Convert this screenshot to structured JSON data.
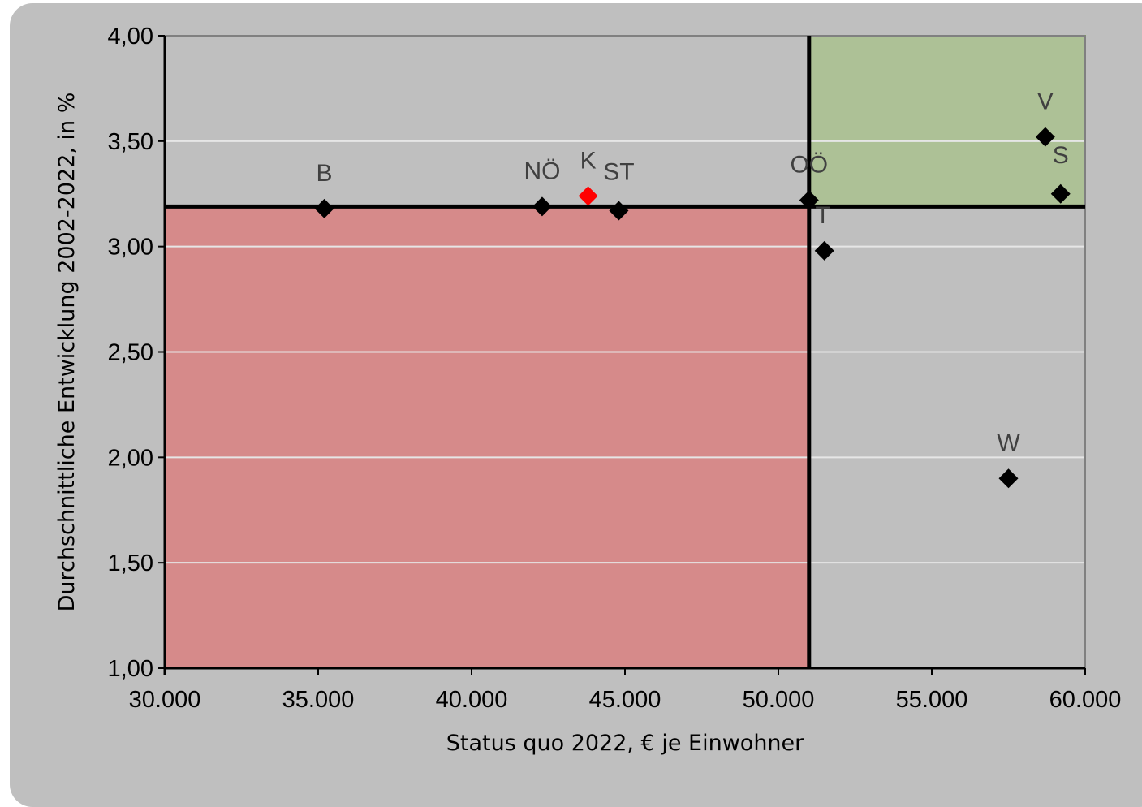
{
  "chart_data": {
    "type": "scatter",
    "title": "",
    "xlabel": "Status quo 2022, € je Einwohner",
    "ylabel": "Durchschnittliche Entwicklung 2002-2022, in %",
    "xlim": [
      30000,
      60000
    ],
    "ylim": [
      1.0,
      4.0
    ],
    "x_ticks": [
      {
        "value": 30000,
        "label": "30.000"
      },
      {
        "value": 35000,
        "label": "35.000"
      },
      {
        "value": 40000,
        "label": "40.000"
      },
      {
        "value": 45000,
        "label": "45.000"
      },
      {
        "value": 50000,
        "label": "50.000"
      },
      {
        "value": 55000,
        "label": "55.000"
      },
      {
        "value": 60000,
        "label": "60.000"
      }
    ],
    "y_ticks": [
      {
        "value": 1.0,
        "label": "1,00"
      },
      {
        "value": 1.5,
        "label": "1,50"
      },
      {
        "value": 2.0,
        "label": "2,00"
      },
      {
        "value": 2.5,
        "label": "2,50"
      },
      {
        "value": 3.0,
        "label": "3,00"
      },
      {
        "value": 3.5,
        "label": "3,50"
      },
      {
        "value": 4.0,
        "label": "4,00"
      }
    ],
    "grid": "horizontal",
    "legend": "none",
    "points": [
      {
        "label": "B",
        "x": 35200,
        "y": 3.18,
        "color": "#000000"
      },
      {
        "label": "NÖ",
        "x": 42300,
        "y": 3.19,
        "color": "#000000"
      },
      {
        "label": "K",
        "x": 43800,
        "y": 3.24,
        "color": "#ff0000"
      },
      {
        "label": "ST",
        "x": 44800,
        "y": 3.17,
        "color": "#000000"
      },
      {
        "label": "OÖ",
        "x": 51000,
        "y": 3.22,
        "color": "#000000"
      },
      {
        "label": "T",
        "x": 51500,
        "y": 2.98,
        "color": "#000000"
      },
      {
        "label": "W",
        "x": 57500,
        "y": 1.9,
        "color": "#000000"
      },
      {
        "label": "V",
        "x": 58700,
        "y": 3.52,
        "color": "#000000"
      },
      {
        "label": "S",
        "x": 59200,
        "y": 3.25,
        "color": "#000000"
      }
    ],
    "reference_lines": {
      "x": 51000,
      "y": 3.19
    },
    "regions": [
      {
        "name": "below-average",
        "x_range": [
          30000,
          51000
        ],
        "y_range": [
          1.0,
          3.19
        ],
        "color": "#d98080"
      },
      {
        "name": "above-average",
        "x_range": [
          51000,
          60000
        ],
        "y_range": [
          3.19,
          4.0
        ],
        "color": "#a9c18e"
      }
    ],
    "colors": {
      "panel": "#bfbfbf",
      "gridline": "#e6e6e6",
      "marker": "#000000",
      "highlight": "#ff0000"
    }
  }
}
